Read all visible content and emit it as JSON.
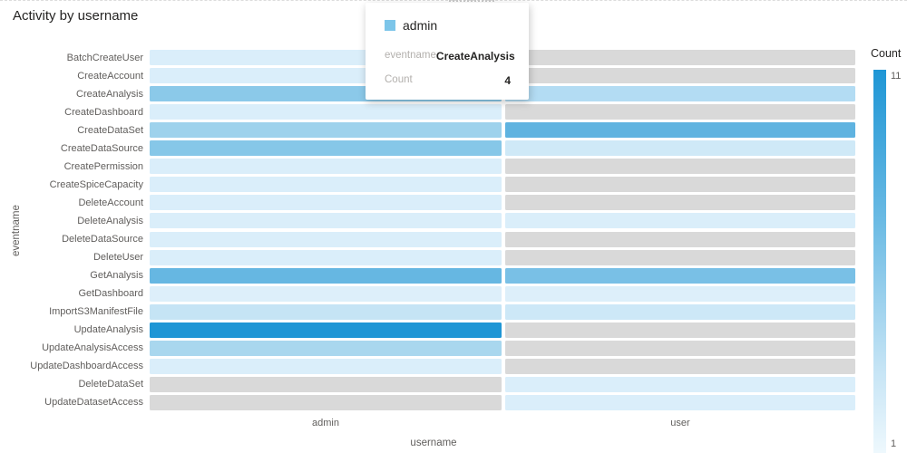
{
  "title": "Activity by username",
  "legend": {
    "title": "Count",
    "max_label": "11",
    "min_label": "1"
  },
  "axes": {
    "x_title": "username",
    "y_title": "eventname",
    "x_categories": [
      "admin",
      "user"
    ]
  },
  "tooltip": {
    "series_label": "admin",
    "swatch_color": "#7cc5e9",
    "rows": [
      {
        "label": "eventname",
        "value": "CreateAnalysis"
      },
      {
        "label": "Count",
        "value": "4"
      }
    ]
  },
  "colors": {
    "max": "#1f96d5",
    "min": "#eef8fd",
    "no_data": "#d9d9d9",
    "axis_text": "#605e5c",
    "title_text": "#252423"
  },
  "chart_data": {
    "type": "heatmap",
    "title": "Activity by username",
    "xlabel": "username",
    "ylabel": "eventname",
    "legend_title": "Count",
    "color_scale": {
      "min": 1,
      "max": 11,
      "min_color": "#eef8fd",
      "max_color": "#1f96d5",
      "no_data_color": "#d9d9d9"
    },
    "columns": [
      "admin",
      "user"
    ],
    "rows": [
      "BatchCreateUser",
      "CreateAccount",
      "CreateAnalysis",
      "CreateDashboard",
      "CreateDataSet",
      "CreateDataSource",
      "CreatePermission",
      "CreateSpiceCapacity",
      "DeleteAccount",
      "DeleteAnalysis",
      "DeleteDataSource",
      "DeleteUser",
      "GetAnalysis",
      "GetDashboard",
      "ImportS3ManifestFile",
      "UpdateAnalysis",
      "UpdateAnalysisAccess",
      "UpdateDashboardAccess",
      "DeleteDataSet",
      "UpdateDatasetAccess"
    ],
    "series": [
      {
        "name": "admin",
        "values": [
          1,
          1,
          4,
          1,
          3,
          4,
          1,
          1,
          1,
          1,
          1,
          1,
          6,
          1,
          2,
          11,
          3,
          1,
          null,
          null
        ],
        "colors": [
          "#daeefa",
          "#daeefa",
          "#8bc9e9",
          "#daeefa",
          "#9ed2ec",
          "#86c7e8",
          "#daeefa",
          "#daeefa",
          "#daeefa",
          "#daeefa",
          "#daeefa",
          "#daeefa",
          "#66b7e2",
          "#ddeffa",
          "#c5e4f5",
          "#1f96d5",
          "#a9d7ee",
          "#daeefa",
          "#d9d9d9",
          "#d9d9d9"
        ]
      },
      {
        "name": "user",
        "values": [
          null,
          null,
          2,
          null,
          6,
          2,
          null,
          null,
          null,
          1,
          null,
          null,
          5,
          1,
          2,
          null,
          null,
          null,
          1,
          1
        ],
        "colors": [
          "#d9d9d9",
          "#d9d9d9",
          "#b3dcf3",
          "#d9d9d9",
          "#5fb3e0",
          "#cfe9f7",
          "#d9d9d9",
          "#d9d9d9",
          "#d9d9d9",
          "#daeefa",
          "#d9d9d9",
          "#d9d9d9",
          "#79c0e6",
          "#ddeffa",
          "#cde8f7",
          "#d9d9d9",
          "#d9d9d9",
          "#d9d9d9",
          "#daeefa",
          "#daeefa"
        ]
      }
    ]
  }
}
